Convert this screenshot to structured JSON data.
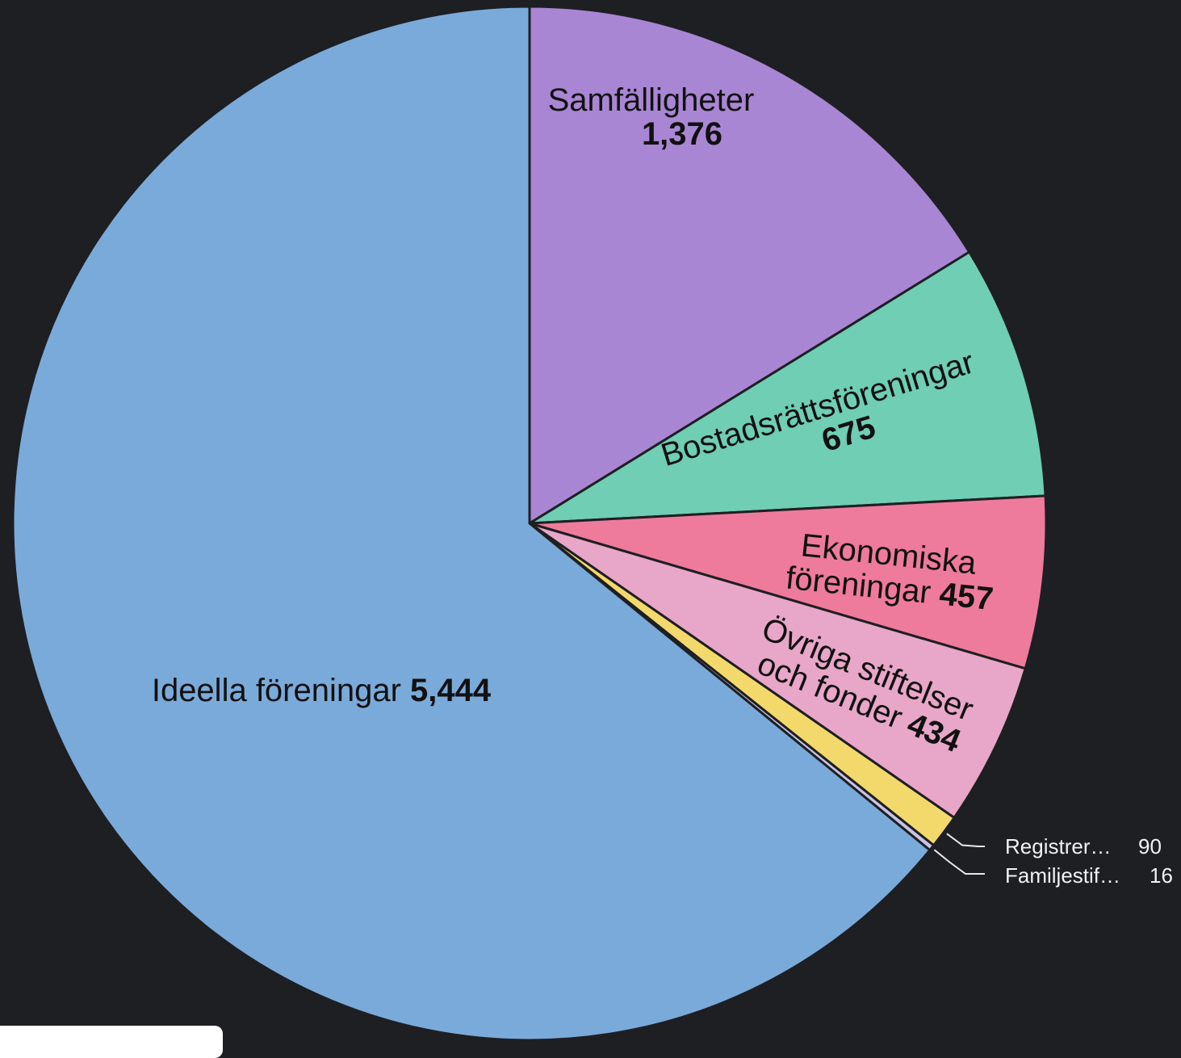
{
  "chart_data": {
    "type": "pie",
    "slices": [
      {
        "label": "Samfälligheter",
        "value": 1376,
        "value_text": "1,376",
        "color": "#a986d4"
      },
      {
        "label": "Bostadsrättsföreningar",
        "value": 675,
        "value_text": "675",
        "color": "#6fceb4"
      },
      {
        "label": "Ekonomiska föreningar",
        "value": 457,
        "value_text": "457",
        "color": "#ee7b9b"
      },
      {
        "label": "Övriga stiftelser och fonder",
        "value": 434,
        "value_text": "434",
        "color": "#e8a6c8"
      },
      {
        "label": "Registrer…",
        "value": 90,
        "value_text": "90",
        "color": "#f3d96c"
      },
      {
        "label": "Familjestif…",
        "value": 16,
        "value_text": "16",
        "color": "#c9c3e6"
      },
      {
        "label": "Ideella föreningar",
        "value": 5444,
        "value_text": "5,444",
        "color": "#7aaada"
      }
    ],
    "labels": {
      "samf_line1": "Samfälligheter",
      "samf_value": "1,376",
      "bost_line1": "Bostadsrättsföreningar",
      "bost_value": "675",
      "eko_line1": "Ekonomiska",
      "eko_line2": "föreningar ",
      "eko_value": "457",
      "ovr_line1": "Övriga stiftelser",
      "ovr_line2": "och fonder ",
      "ovr_value": "434",
      "reg_label": "Registrer…",
      "reg_value": "90",
      "fam_label": "Familjestif…",
      "fam_value": "16",
      "ide_label": "Ideella föreningar ",
      "ide_value": "5,444"
    }
  }
}
